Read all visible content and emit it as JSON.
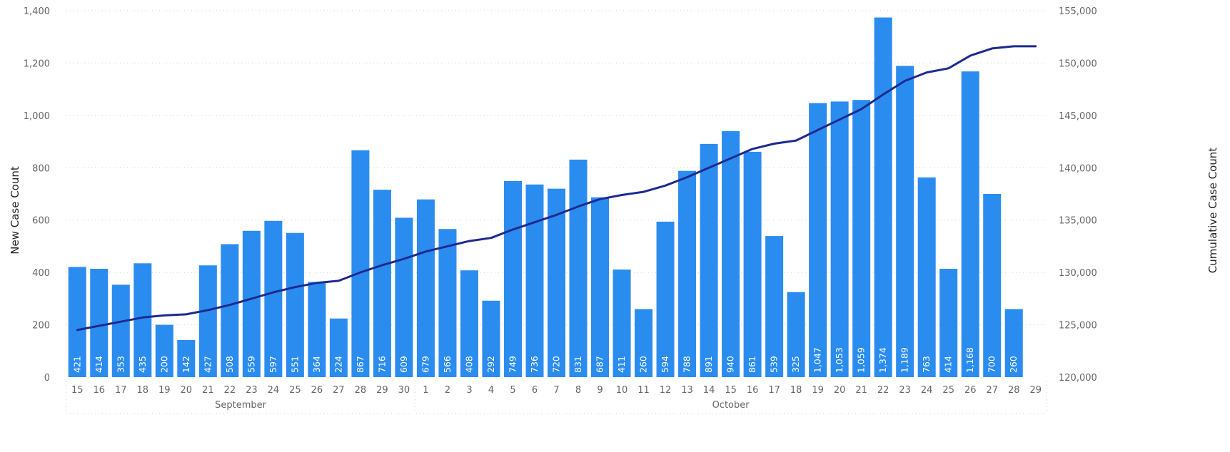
{
  "chart_data": {
    "type": "bar",
    "title": "",
    "x": [
      15,
      16,
      17,
      18,
      19,
      20,
      21,
      22,
      23,
      24,
      25,
      26,
      27,
      28,
      29,
      30,
      1,
      2,
      3,
      4,
      5,
      6,
      7,
      8,
      9,
      10,
      11,
      12,
      13,
      14,
      15,
      16,
      17,
      18,
      19,
      20,
      21,
      22,
      23,
      24,
      25,
      26,
      27,
      28,
      29
    ],
    "x_groups": [
      {
        "label": "September",
        "count": 16
      },
      {
        "label": "October",
        "count": 29
      }
    ],
    "xlabel": "",
    "ylabel": "New Case Count",
    "y2label": "Cumulative Case Count",
    "ylim": [
      0,
      1400
    ],
    "y2lim": [
      120000,
      155000
    ],
    "yticks": [
      "0",
      "200",
      "400",
      "600",
      "800",
      "1,000",
      "1,200",
      "1,400"
    ],
    "y2ticks": [
      "120,000",
      "125,000",
      "130,000",
      "135,000",
      "140,000",
      "145,000",
      "150,000",
      "155,000"
    ],
    "grid": true,
    "series": [
      {
        "name": "New Case Count",
        "kind": "bar",
        "color": "#2b8cf0",
        "values": [
          421,
          414,
          353,
          435,
          200,
          142,
          427,
          508,
          559,
          597,
          551,
          364,
          224,
          867,
          716,
          609,
          679,
          566,
          408,
          292,
          749,
          736,
          720,
          831,
          687,
          411,
          260,
          594,
          788,
          891,
          940,
          861,
          539,
          325,
          1047,
          1053,
          1059,
          1374,
          1189,
          763,
          414,
          1168,
          700,
          260,
          null
        ],
        "labels": [
          "421",
          "414",
          "353",
          "435",
          "200",
          "142",
          "427",
          "508",
          "559",
          "597",
          "551",
          "364",
          "224",
          "867",
          "716",
          "609",
          "679",
          "566",
          "408",
          "292",
          "749",
          "736",
          "720",
          "831",
          "687",
          "411",
          "260",
          "594",
          "788",
          "891",
          "940",
          "861",
          "539",
          "325",
          "1,047",
          "1,053",
          "1,059",
          "1,374",
          "1,189",
          "763",
          "414",
          "1,168",
          "700",
          "260",
          ""
        ]
      },
      {
        "name": "Cumulative Case Count",
        "kind": "line",
        "axis": "right",
        "color": "#1d2a8f",
        "values": [
          124500,
          124900,
          125300,
          125700,
          125900,
          126000,
          126400,
          126900,
          127500,
          128100,
          128600,
          129000,
          129200,
          130000,
          130700,
          131300,
          132000,
          132500,
          133000,
          133300,
          134100,
          134800,
          135500,
          136300,
          137000,
          137400,
          137700,
          138300,
          139100,
          140000,
          140900,
          141800,
          142300,
          142600,
          143600,
          144600,
          145600,
          147000,
          148300,
          149100,
          149500,
          150700,
          151400,
          151600,
          151600
        ]
      }
    ]
  }
}
